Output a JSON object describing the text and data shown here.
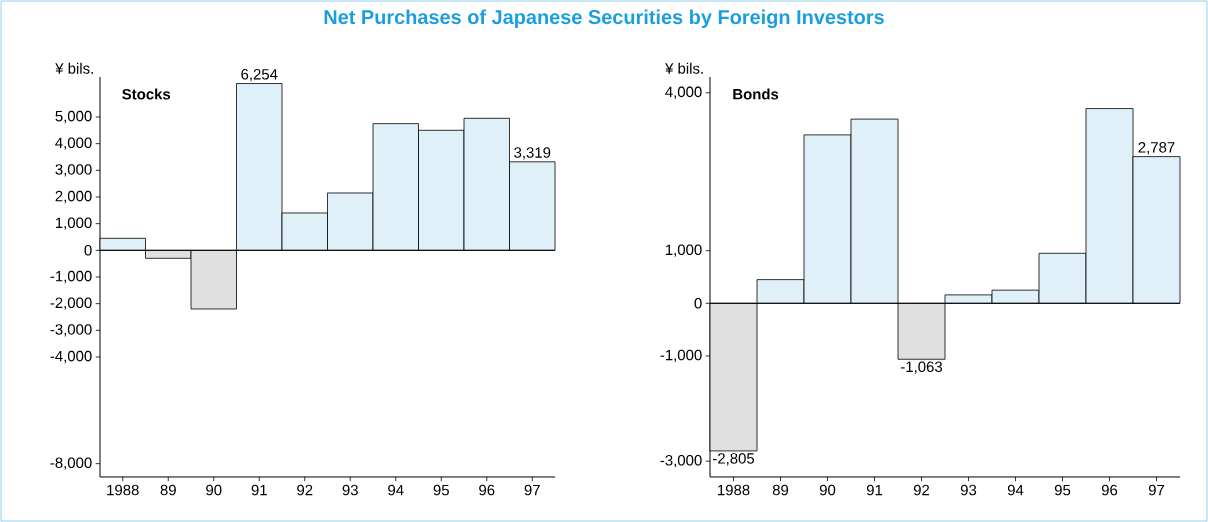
{
  "chart_data": [
    {
      "type": "bar",
      "title": "Net Purchases of Japanese Securities by Foreign Investors",
      "subtitle": "Stocks",
      "ylabel": "¥ bils.",
      "categories": [
        "1988",
        "89",
        "90",
        "91",
        "92",
        "93",
        "94",
        "95",
        "96",
        "97"
      ],
      "values": [
        450,
        -300,
        -2200,
        6254,
        1400,
        2150,
        4750,
        4500,
        4950,
        3319
      ],
      "colors": [
        "#dff0f8",
        "#e0e0e0",
        "#e0e0e0",
        "#dff0f8",
        "#dff0f8",
        "#dff0f8",
        "#dff0f8",
        "#dff0f8",
        "#dff0f8",
        "#dff0f8"
      ],
      "value_labels": [
        null,
        null,
        null,
        "6,254",
        null,
        null,
        null,
        null,
        null,
        "3,319"
      ],
      "ylim": [
        -8500,
        6500
      ],
      "yticks": [
        {
          "value": -8000,
          "label": "-8,000"
        },
        {
          "value": -4000,
          "label": "-4,000"
        },
        {
          "value": -3000,
          "label": "-3,000"
        },
        {
          "value": -2000,
          "label": "-2,000"
        },
        {
          "value": -1000,
          "label": "-1,000"
        },
        0,
        {
          "value": 1000,
          "label": "1,000"
        },
        {
          "value": 2000,
          "label": "2,000"
        },
        {
          "value": 3000,
          "label": "3,000"
        },
        {
          "value": 4000,
          "label": "4,000"
        },
        {
          "value": 5000,
          "label": "5,000"
        }
      ]
    },
    {
      "type": "bar",
      "subtitle": "Bonds",
      "ylabel": "¥ bils.",
      "categories": [
        "1988",
        "89",
        "90",
        "91",
        "92",
        "93",
        "94",
        "95",
        "96",
        "97"
      ],
      "values": [
        -2805,
        450,
        3200,
        3500,
        -1063,
        160,
        250,
        950,
        3700,
        2787
      ],
      "colors": [
        "#e0e0e0",
        "#dff0f8",
        "#dff0f8",
        "#dff0f8",
        "#e0e0e0",
        "#dff0f8",
        "#dff0f8",
        "#dff0f8",
        "#dff0f8",
        "#dff0f8"
      ],
      "value_labels": [
        "-2,805",
        null,
        null,
        null,
        "-1,063",
        null,
        null,
        null,
        null,
        "2,787"
      ],
      "ylim": [
        -3300,
        4300
      ],
      "yticks": [
        {
          "value": -3000,
          "label": "-3,000"
        },
        {
          "value": -1000,
          "label": "-1,000"
        },
        0,
        {
          "value": 1000,
          "label": "1,000"
        },
        {
          "value": 4000,
          "label": "4,000"
        }
      ]
    }
  ]
}
